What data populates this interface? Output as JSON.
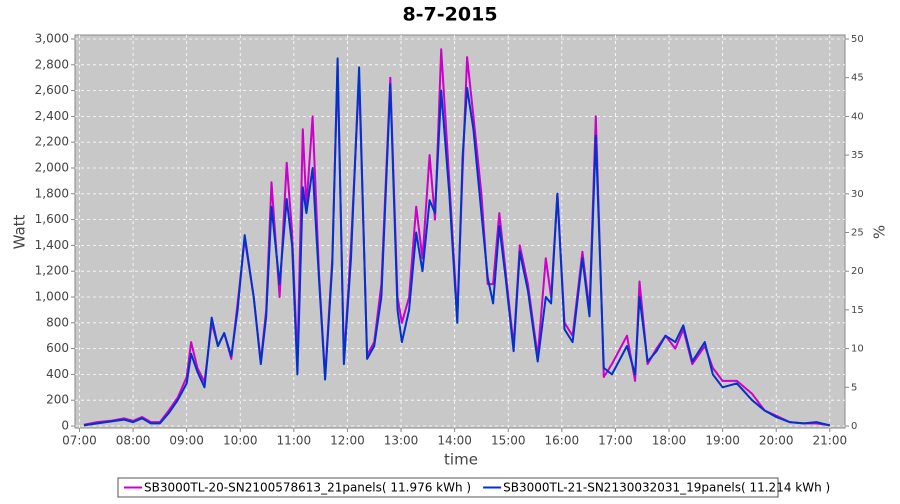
{
  "chart_data": {
    "type": "line",
    "title": "8-7-2015",
    "x_label": "time",
    "y_label": "Watt",
    "y2_label": "%",
    "x": [
      "07:05",
      "07:20",
      "07:35",
      "07:50",
      "08:00",
      "08:10",
      "08:20",
      "08:30",
      "08:40",
      "08:50",
      "09:00",
      "09:05",
      "09:12",
      "09:20",
      "09:28",
      "09:35",
      "09:42",
      "09:50",
      "09:57",
      "10:05",
      "10:15",
      "10:23",
      "10:29",
      "10:35",
      "10:44",
      "10:52",
      "10:58",
      "11:04",
      "11:10",
      "11:14",
      "11:21",
      "11:28",
      "11:35",
      "11:43",
      "11:49",
      "11:56",
      "12:04",
      "12:13",
      "12:22",
      "12:30",
      "12:38",
      "12:48",
      "12:56",
      "13:01",
      "13:09",
      "13:17",
      "13:24",
      "13:32",
      "13:38",
      "13:45",
      "13:54",
      "14:03",
      "14:09",
      "14:14",
      "14:21",
      "14:30",
      "14:37",
      "14:43",
      "14:50",
      "14:57",
      "15:06",
      "15:13",
      "15:22",
      "15:33",
      "15:42",
      "15:48",
      "15:55",
      "16:03",
      "16:12",
      "16:23",
      "16:31",
      "16:38",
      "16:47",
      "16:56",
      "17:13",
      "17:22",
      "17:27",
      "17:36",
      "17:46",
      "17:56",
      "18:07",
      "18:16",
      "18:26",
      "18:40",
      "18:49",
      "19:00",
      "19:16",
      "19:33",
      "19:47",
      "20:00",
      "20:15",
      "20:31",
      "20:45",
      "21:00"
    ],
    "series": [
      {
        "name": "SB3000TL-20-SN2100578613_21panels( 11.976 kWh )",
        "color": "#cc00cc",
        "values": [
          10,
          30,
          40,
          60,
          40,
          70,
          30,
          30,
          120,
          220,
          380,
          650,
          450,
          340,
          800,
          620,
          720,
          520,
          950,
          1450,
          1000,
          500,
          900,
          1890,
          1000,
          2040,
          1500,
          500,
          2300,
          1700,
          2400,
          1200,
          380,
          1300,
          2800,
          500,
          1400,
          2700,
          550,
          650,
          1100,
          2700,
          1000,
          800,
          1000,
          1700,
          1300,
          2100,
          1600,
          2920,
          1900,
          850,
          2000,
          2860,
          2400,
          1800,
          1100,
          1100,
          1650,
          1200,
          620,
          1400,
          1100,
          540,
          1300,
          1000,
          1800,
          800,
          700,
          1350,
          900,
          2400,
          380,
          480,
          700,
          350,
          1120,
          480,
          600,
          700,
          600,
          750,
          480,
          620,
          450,
          350,
          350,
          250,
          120,
          80,
          30,
          20,
          20,
          5
        ]
      },
      {
        "name": "SB3000TL-21-SN2130032031_19panels( 11.214 kWh )",
        "color": "#0033cc",
        "values": [
          5,
          20,
          35,
          50,
          30,
          60,
          20,
          20,
          100,
          200,
          330,
          560,
          420,
          300,
          840,
          620,
          720,
          540,
          900,
          1480,
          1000,
          480,
          850,
          1700,
          1100,
          1760,
          1400,
          400,
          1850,
          1650,
          2000,
          1150,
          360,
          1250,
          2850,
          480,
          1300,
          2780,
          520,
          620,
          1000,
          2650,
          900,
          650,
          900,
          1500,
          1200,
          1750,
          1650,
          2600,
          1800,
          800,
          2100,
          2620,
          2300,
          1650,
          1150,
          950,
          1550,
          1150,
          580,
          1350,
          1050,
          500,
          1000,
          950,
          1800,
          750,
          650,
          1300,
          850,
          2250,
          450,
          400,
          620,
          400,
          1000,
          500,
          580,
          700,
          650,
          780,
          500,
          650,
          400,
          300,
          330,
          200,
          120,
          70,
          30,
          20,
          30,
          5
        ]
      }
    ],
    "xlim": [
      "06:55",
      "21:17"
    ],
    "xticks": [
      "07:00",
      "08:00",
      "09:00",
      "10:00",
      "11:00",
      "12:00",
      "13:00",
      "14:00",
      "15:00",
      "16:00",
      "17:00",
      "18:00",
      "19:00",
      "20:00",
      "21:00"
    ],
    "ylim": [
      0,
      3000
    ],
    "yticks": [
      0,
      200,
      400,
      600,
      800,
      {
        "value": 1000,
        "label": "1,000"
      },
      {
        "value": 1200,
        "label": "1,200"
      },
      {
        "value": 1400,
        "label": "1,400"
      },
      {
        "value": 1600,
        "label": "1,600"
      },
      {
        "value": 1800,
        "label": "1,800"
      },
      {
        "value": 2000,
        "label": "2,000"
      },
      {
        "value": 2200,
        "label": "2,200"
      },
      {
        "value": 2400,
        "label": "2,400"
      },
      {
        "value": 2600,
        "label": "2,600"
      },
      {
        "value": 2800,
        "label": "2,800"
      },
      {
        "value": 3000,
        "label": "3,000"
      }
    ],
    "y2lim": [
      0,
      50
    ],
    "y2ticks": [
      0,
      5,
      10,
      15,
      20,
      25,
      30,
      35,
      40,
      45,
      50
    ],
    "grid": true,
    "legend": "bottom"
  }
}
